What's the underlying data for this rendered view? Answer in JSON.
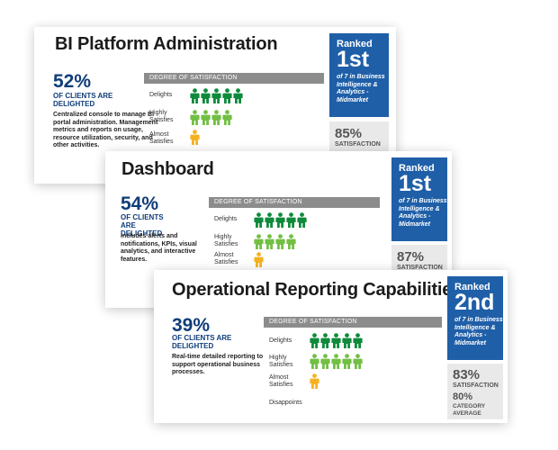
{
  "colors": {
    "rank_blue": "#1f5fa8",
    "delights": "#0f8a3c",
    "highly_satisfies": "#72bf44",
    "almost_satisfies": "#f5b220",
    "text_blue": "#0f3d7a"
  },
  "icon": "person-icon",
  "cards": [
    {
      "title": "BI Platform Administration",
      "percent": "52%",
      "percent_caption": "OF CLIENTS ARE DELIGHTED",
      "description": "Centralized console to manage BI portal administration. Management metrics and reports on usage, resource utilization, security, and other activities.",
      "satisfaction_header": "DEGREE OF SATISFACTION",
      "rows": [
        {
          "label": "Delights",
          "count": 5
        },
        {
          "label": "Highly Satisfies",
          "count": 4
        },
        {
          "label": "Almost Satisfies",
          "count": 1
        }
      ],
      "rank_label": "Ranked",
      "rank": "1st",
      "rank_detail": "of 7 in Business Intelligence & Analytics - Midmarket",
      "satisfaction": "85%",
      "satisfaction_label": "SATISFACTION"
    },
    {
      "title": "Dashboard",
      "percent": "54%",
      "percent_caption": "OF CLIENTS ARE DELIGHTED",
      "description": "Includes alerts and notifications, KPIs, visual analytics, and interactive features.",
      "satisfaction_header": "DEGREE OF SATISFACTION",
      "rows": [
        {
          "label": "Delights",
          "count": 5
        },
        {
          "label": "Highly Satisfies",
          "count": 4
        },
        {
          "label": "Almost Satisfies",
          "count": 1
        }
      ],
      "rank_label": "Ranked",
      "rank": "1st",
      "rank_detail": "of 7 in Business Intelligence & Analytics - Midmarket",
      "satisfaction": "87%",
      "satisfaction_label": "SATISFACTION"
    },
    {
      "title": "Operational Reporting Capabilities",
      "percent": "39%",
      "percent_caption": "OF CLIENTS ARE DELIGHTED",
      "description": "Real-time detailed reporting to support operational business processes.",
      "satisfaction_header": "DEGREE OF SATISFACTION",
      "rows": [
        {
          "label": "Delights",
          "count": 5
        },
        {
          "label": "Highly Satisfies",
          "count": 5
        },
        {
          "label": "Almost Satisfies",
          "count": 1
        },
        {
          "label": "Disappoints",
          "count": 0
        }
      ],
      "rank_label": "Ranked",
      "rank": "2nd",
      "rank_detail": "of 7 in Business Intelligence & Analytics - Midmarket",
      "satisfaction": "83%",
      "satisfaction_label": "SATISFACTION",
      "category_average": "80%",
      "category_average_label": "CATEGORY AVERAGE"
    }
  ]
}
